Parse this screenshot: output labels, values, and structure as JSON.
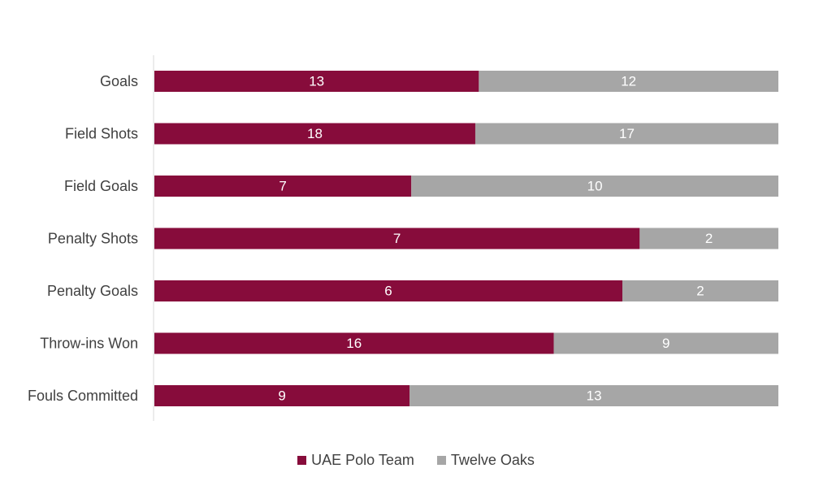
{
  "chart_data": {
    "type": "bar",
    "orientation": "horizontal",
    "stacking": "percent",
    "categories": [
      "Goals",
      "Field Shots",
      "Field Goals",
      "Penalty Shots",
      "Penalty Goals",
      "Throw-ins Won",
      "Fouls Committed"
    ],
    "series": [
      {
        "name": "UAE Polo Team",
        "color": "#870c3b",
        "values": [
          13,
          18,
          7,
          7,
          6,
          16,
          9
        ]
      },
      {
        "name": "Twelve Oaks",
        "color": "#a6a6a6",
        "values": [
          12,
          17,
          10,
          2,
          2,
          9,
          13
        ]
      }
    ],
    "data_labels": true,
    "grid": false,
    "legend_position": "bottom"
  }
}
